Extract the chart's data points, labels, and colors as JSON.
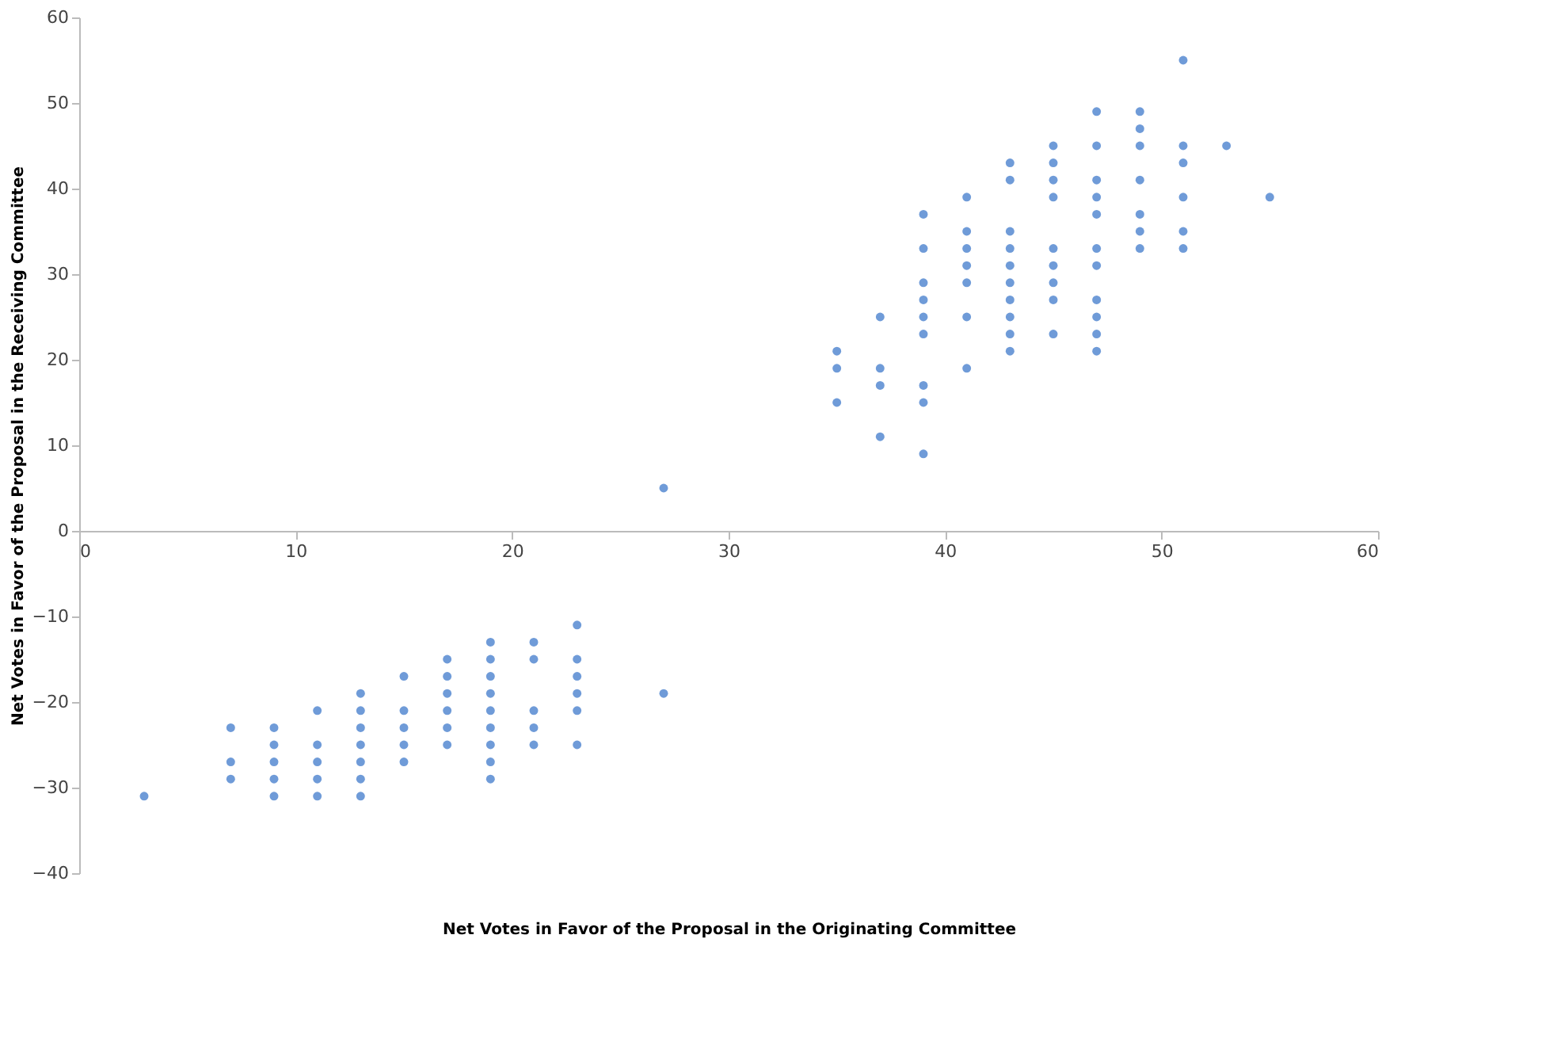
{
  "chart_data": {
    "type": "scatter",
    "xlabel": "Net Votes in Favor of the Proposal in the Originating Committee",
    "ylabel": "Net Votes in Favor of the Proposal in the Receiving Committee",
    "xlim": [
      0,
      60
    ],
    "xticks": [
      0,
      10,
      20,
      30,
      40,
      50,
      60
    ],
    "ylim": [
      -40,
      60
    ],
    "yticks": [
      -40,
      -30,
      -20,
      -10,
      0,
      10,
      20,
      30,
      40,
      50,
      60
    ],
    "grid": false,
    "marker": "circle",
    "legend": false,
    "series": [
      {
        "color": "#6f9bd8",
        "x": [
          3,
          7,
          7,
          7,
          9,
          9,
          9,
          9,
          9,
          11,
          11,
          11,
          11,
          11,
          13,
          13,
          13,
          13,
          13,
          13,
          13,
          15,
          15,
          15,
          15,
          15,
          17,
          17,
          17,
          17,
          17,
          17,
          19,
          19,
          19,
          19,
          19,
          19,
          19,
          19,
          19,
          21,
          21,
          21,
          21,
          21,
          23,
          23,
          23,
          23,
          23,
          23,
          27,
          27,
          35,
          35,
          35,
          37,
          37,
          37,
          37,
          39,
          39,
          39,
          39,
          39,
          39,
          39,
          39,
          39,
          41,
          41,
          41,
          41,
          41,
          41,
          41,
          43,
          43,
          43,
          43,
          43,
          43,
          43,
          43,
          43,
          43,
          45,
          45,
          45,
          45,
          45,
          45,
          45,
          45,
          45,
          47,
          47,
          47,
          47,
          47,
          47,
          47,
          47,
          47,
          47,
          47,
          49,
          49,
          49,
          49,
          49,
          49,
          49,
          51,
          51,
          51,
          51,
          51,
          51,
          53,
          55
        ],
        "values": [
          -31,
          -23,
          -27,
          -29,
          -23,
          -25,
          -27,
          -29,
          -31,
          -21,
          -25,
          -27,
          -29,
          -31,
          -19,
          -21,
          -23,
          -25,
          -27,
          -29,
          -31,
          -17,
          -21,
          -23,
          -25,
          -27,
          -15,
          -17,
          -19,
          -21,
          -23,
          -25,
          -13,
          -15,
          -17,
          -19,
          -21,
          -23,
          -25,
          -27,
          -29,
          -13,
          -15,
          -21,
          -23,
          -25,
          -11,
          -15,
          -17,
          -19,
          -21,
          -25,
          -19,
          5,
          21,
          19,
          15,
          25,
          19,
          17,
          11,
          37,
          33,
          29,
          27,
          25,
          23,
          17,
          15,
          9,
          39,
          35,
          33,
          31,
          29,
          25,
          19,
          43,
          41,
          35,
          33,
          31,
          29,
          27,
          25,
          23,
          21,
          45,
          43,
          41,
          39,
          33,
          31,
          29,
          27,
          23,
          49,
          45,
          41,
          39,
          37,
          33,
          31,
          27,
          25,
          23,
          21,
          49,
          47,
          45,
          41,
          37,
          35,
          33,
          55,
          45,
          43,
          39,
          35,
          33,
          45,
          39
        ]
      }
    ]
  }
}
